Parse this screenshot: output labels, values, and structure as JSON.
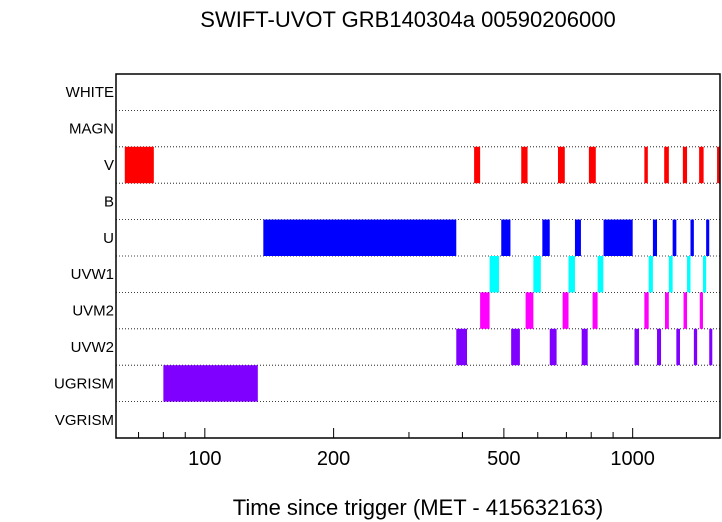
{
  "chart_data": {
    "type": "bar",
    "title": "SWIFT-UVOT GRB140304a 00590206000",
    "xlabel": "Time since trigger (MET - 415632163)",
    "x_scale": "log",
    "xlim": [
      62,
      1600
    ],
    "x_ticks": [
      {
        "value": 100,
        "label": "100"
      },
      {
        "value": 200,
        "label": "200"
      },
      {
        "value": 500,
        "label": "500"
      },
      {
        "value": 1000,
        "label": "1000"
      }
    ],
    "grid": "dotted horizontal row separators",
    "filters": [
      "WHITE",
      "MAGN",
      "V",
      "B",
      "U",
      "UVW1",
      "UVM2",
      "UVW2",
      "UGRISM",
      "VGRISM"
    ],
    "colors": {
      "V": "#ff0000",
      "U": "#0000ff",
      "UVW1": "#00ffff",
      "UVM2": "#ff00ff",
      "UVW2": "#8000ff",
      "UGRISM": "#8000ff"
    },
    "exposures": [
      {
        "filter": "V",
        "start": 65,
        "end": 76
      },
      {
        "filter": "V",
        "start": 426,
        "end": 440
      },
      {
        "filter": "V",
        "start": 549,
        "end": 568
      },
      {
        "filter": "V",
        "start": 669,
        "end": 694
      },
      {
        "filter": "V",
        "start": 790,
        "end": 820
      },
      {
        "filter": "V",
        "start": 1065,
        "end": 1085
      },
      {
        "filter": "V",
        "start": 1185,
        "end": 1215
      },
      {
        "filter": "V",
        "start": 1310,
        "end": 1340
      },
      {
        "filter": "V",
        "start": 1430,
        "end": 1465
      },
      {
        "filter": "V",
        "start": 1575,
        "end": 1600
      },
      {
        "filter": "U",
        "start": 137,
        "end": 387
      },
      {
        "filter": "U",
        "start": 493,
        "end": 518
      },
      {
        "filter": "U",
        "start": 615,
        "end": 640
      },
      {
        "filter": "U",
        "start": 733,
        "end": 757
      },
      {
        "filter": "U",
        "start": 855,
        "end": 1000
      },
      {
        "filter": "U",
        "start": 1115,
        "end": 1140
      },
      {
        "filter": "U",
        "start": 1240,
        "end": 1265
      },
      {
        "filter": "U",
        "start": 1365,
        "end": 1390
      },
      {
        "filter": "U",
        "start": 1485,
        "end": 1510
      },
      {
        "filter": "UVW1",
        "start": 463,
        "end": 487
      },
      {
        "filter": "UVW1",
        "start": 586,
        "end": 610
      },
      {
        "filter": "UVW1",
        "start": 708,
        "end": 733
      },
      {
        "filter": "UVW1",
        "start": 828,
        "end": 854
      },
      {
        "filter": "UVW1",
        "start": 1090,
        "end": 1115
      },
      {
        "filter": "UVW1",
        "start": 1215,
        "end": 1240
      },
      {
        "filter": "UVW1",
        "start": 1340,
        "end": 1365
      },
      {
        "filter": "UVW1",
        "start": 1460,
        "end": 1485
      },
      {
        "filter": "UVM2",
        "start": 440,
        "end": 463
      },
      {
        "filter": "UVM2",
        "start": 562,
        "end": 586
      },
      {
        "filter": "UVM2",
        "start": 686,
        "end": 708
      },
      {
        "filter": "UVM2",
        "start": 806,
        "end": 828
      },
      {
        "filter": "UVM2",
        "start": 1065,
        "end": 1090
      },
      {
        "filter": "UVM2",
        "start": 1190,
        "end": 1215
      },
      {
        "filter": "UVM2",
        "start": 1315,
        "end": 1340
      },
      {
        "filter": "UVM2",
        "start": 1435,
        "end": 1460
      },
      {
        "filter": "UVW2",
        "start": 387,
        "end": 410
      },
      {
        "filter": "UVW2",
        "start": 520,
        "end": 545
      },
      {
        "filter": "UVW2",
        "start": 640,
        "end": 664
      },
      {
        "filter": "UVW2",
        "start": 760,
        "end": 785
      },
      {
        "filter": "UVW2",
        "start": 1010,
        "end": 1035
      },
      {
        "filter": "UVW2",
        "start": 1140,
        "end": 1165
      },
      {
        "filter": "UVW2",
        "start": 1265,
        "end": 1290
      },
      {
        "filter": "UVW2",
        "start": 1390,
        "end": 1415
      },
      {
        "filter": "UVW2",
        "start": 1510,
        "end": 1535
      },
      {
        "filter": "UGRISM",
        "start": 80,
        "end": 133
      }
    ]
  }
}
